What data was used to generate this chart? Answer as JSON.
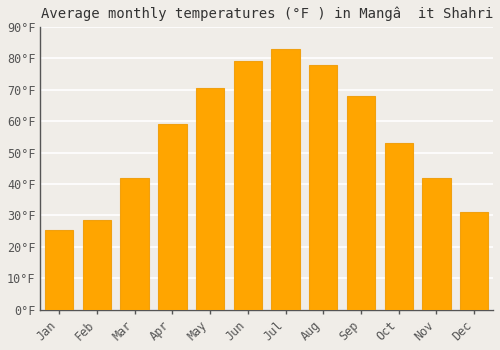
{
  "title": "Average monthly temperatures (°F ) in Mangâ  it Shahri",
  "months": [
    "Jan",
    "Feb",
    "Mar",
    "Apr",
    "May",
    "Jun",
    "Jul",
    "Aug",
    "Sep",
    "Oct",
    "Nov",
    "Dec"
  ],
  "values": [
    25.5,
    28.5,
    42,
    59,
    70.5,
    79,
    83,
    78,
    68,
    53,
    42,
    31
  ],
  "bar_color": "#FFA500",
  "bar_edge_color": "#F0A010",
  "background_color": "#f0ede8",
  "grid_color": "#ffffff",
  "ylim": [
    0,
    90
  ],
  "yticks": [
    0,
    10,
    20,
    30,
    40,
    50,
    60,
    70,
    80,
    90
  ],
  "ytick_labels": [
    "0°F",
    "10°F",
    "20°F",
    "30°F",
    "40°F",
    "50°F",
    "60°F",
    "70°F",
    "80°F",
    "90°F"
  ],
  "title_fontsize": 10,
  "tick_fontsize": 8.5,
  "font_family": "monospace"
}
